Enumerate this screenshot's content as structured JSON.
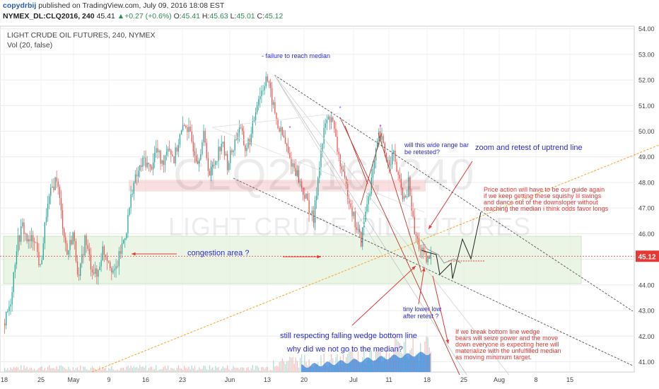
{
  "header": {
    "author": "copydrbij",
    "published_on": "published on TradingView.com, July 09, 2016 18:08 EST",
    "symbol": "NYMEX_DL:CLQ2016",
    "interval": "240",
    "last": "45.41",
    "change": "+0.27 (+0.6%)",
    "open_label": "O:",
    "open": "45.41",
    "high_label": "H:",
    "high": "45.63",
    "low_label": "L:",
    "low": "45.01",
    "close_label": "C:",
    "close": "45.12"
  },
  "chart_title": "LIGHT CRUDE OIL FUTURES, 240, NYMEX",
  "volume_label": "Vol (20, false)",
  "watermark": {
    "symbol": "CLQ2016, 240",
    "name": "LIGHT CRUDE OIL FUTURES"
  },
  "price_badge": "45.12",
  "colors": {
    "up": "#26a69a",
    "down": "#ef5350",
    "annotation_blue": "#2b2bd6",
    "annotation_red": "#e53935",
    "trendline_orange": "#f5a623"
  },
  "annotations": {
    "failure": "- failure to reach median",
    "wide_bar": [
      "will this wide range bar",
      "be retested?"
    ],
    "zoom": "zoom and retest of uptrend line",
    "price_action": [
      "Price action will have to be our guide again",
      "if we keep getting these squishy lil swings",
      "and dance out of the downsloper without",
      "reaching the median i think odds favor longs"
    ],
    "congestion": "congestion area ?",
    "tiny_lower_low": [
      "tiny lower low",
      "after retest ?"
    ],
    "still_respecting": "still respecting falling wedge bottom line",
    "why_median": "why did we not go to the median?",
    "break_bottom": [
      "If we break bottom line wedge",
      "bears will seize power and the move",
      "down everyone is expecting here will",
      "materialize with the unfulfilled median",
      "as moving minimum target."
    ]
  },
  "chart_data": {
    "type": "candlestick",
    "x_ticks": [
      "18",
      "25",
      "May",
      "9",
      "16",
      "23",
      "Jun",
      "13",
      "20",
      "Jul",
      "11",
      "18",
      "25",
      "Aug",
      "8",
      "15"
    ],
    "y_ticks": [
      "41.00",
      "42.00",
      "43.00",
      "44.00",
      "45.00",
      "46.00",
      "47.00",
      "48.00",
      "49.00",
      "50.00",
      "51.00",
      "52.00",
      "53.00",
      "54.00"
    ],
    "ylim": [
      40.6,
      54.1
    ],
    "last_price": 45.12,
    "zones": [
      {
        "name": "resistance-zone",
        "from": 47.65,
        "to": 48.1
      },
      {
        "name": "congestion-zone",
        "from": 44.05,
        "to": 45.9
      }
    ],
    "path_points": [
      [
        0,
        42.5
      ],
      [
        4,
        43.4
      ],
      [
        8,
        45.5
      ],
      [
        12,
        46.3
      ],
      [
        16,
        45.6
      ],
      [
        20,
        45.9
      ],
      [
        24,
        44.6
      ],
      [
        28,
        46.8
      ],
      [
        32,
        47.8
      ],
      [
        35,
        48.2
      ],
      [
        38,
        46.8
      ],
      [
        42,
        45.2
      ],
      [
        46,
        46.0
      ],
      [
        50,
        44.2
      ],
      [
        54,
        45.8
      ],
      [
        58,
        44.8
      ],
      [
        62,
        44.3
      ],
      [
        66,
        45.4
      ],
      [
        70,
        45.0
      ],
      [
        74,
        44.4
      ],
      [
        78,
        45.3
      ],
      [
        82,
        46.2
      ],
      [
        86,
        47.8
      ],
      [
        90,
        48.4
      ],
      [
        94,
        48.9
      ],
      [
        98,
        48.5
      ],
      [
        102,
        49.3
      ],
      [
        106,
        48.7
      ],
      [
        110,
        49.5
      ],
      [
        114,
        48.9
      ],
      [
        118,
        49.8
      ],
      [
        122,
        50.3
      ],
      [
        126,
        49.6
      ],
      [
        130,
        48.9
      ],
      [
        134,
        49.8
      ],
      [
        138,
        48.3
      ],
      [
        142,
        48.9
      ],
      [
        146,
        49.6
      ],
      [
        150,
        48.7
      ],
      [
        154,
        49.4
      ],
      [
        158,
        50.2
      ],
      [
        162,
        49.3
      ],
      [
        166,
        49.8
      ],
      [
        170,
        51.2
      ],
      [
        174,
        51.7
      ],
      [
        176,
        52.2
      ],
      [
        180,
        51.2
      ],
      [
        184,
        50.2
      ],
      [
        188,
        49.7
      ],
      [
        192,
        48.9
      ],
      [
        196,
        48.5
      ],
      [
        200,
        47.8
      ],
      [
        204,
        47.2
      ],
      [
        208,
        46.5
      ],
      [
        212,
        48.8
      ],
      [
        216,
        50.3
      ],
      [
        220,
        50.6
      ],
      [
        224,
        49.3
      ],
      [
        228,
        48.2
      ],
      [
        232,
        47.4
      ],
      [
        236,
        46.4
      ],
      [
        240,
        45.7
      ],
      [
        244,
        47.2
      ],
      [
        248,
        48.4
      ],
      [
        252,
        49.8
      ],
      [
        254,
        49.6
      ],
      [
        258,
        48.8
      ],
      [
        262,
        49.1
      ],
      [
        266,
        47.9
      ],
      [
        270,
        47.2
      ],
      [
        272,
        48.0
      ],
      [
        276,
        46.0
      ],
      [
        280,
        45.4
      ],
      [
        284,
        44.9
      ],
      [
        287,
        45.1
      ]
    ],
    "volume_range": [
      0,
      1
    ]
  },
  "layout_note": "candles generated from path_points",
  "projection": {
    "black": [
      [
        45.6,
        44.4
      ],
      [
        45.4,
        46.4
      ],
      [
        45.2,
        46.6
      ],
      [
        47.3
      ]
    ],
    "gray": [
      [
        46.2,
        45.6
      ],
      [
        45.8,
        45.6
      ],
      [
        46.9
      ]
    ]
  }
}
